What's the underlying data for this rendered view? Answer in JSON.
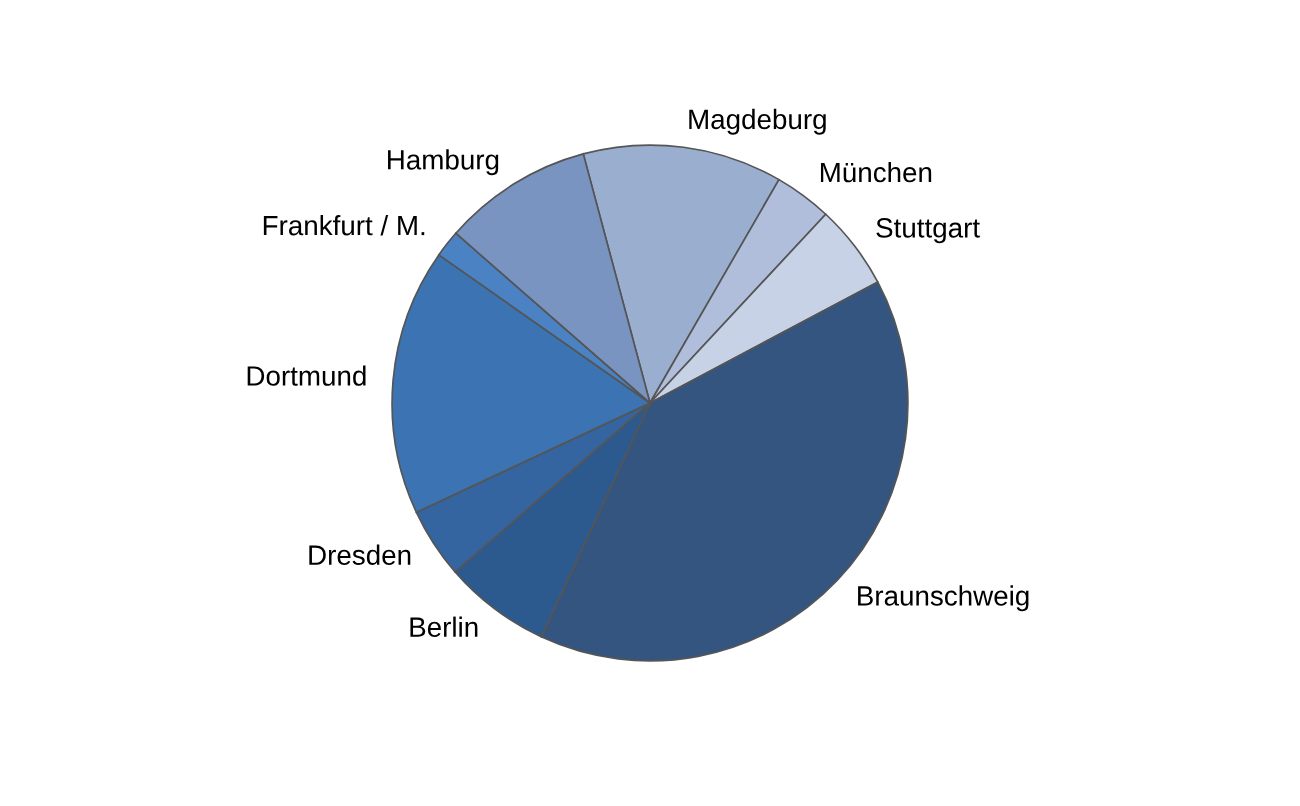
{
  "chart_data": {
    "type": "pie",
    "categories": [
      "Magdeburg",
      "München",
      "Stuttgart",
      "Braunschweig",
      "Berlin",
      "Dresden",
      "Dortmund",
      "Frankfurt / M.",
      "Hamburg"
    ],
    "values": [
      12.5,
      3.6,
      5.3,
      39.7,
      6.7,
      4.4,
      16.7,
      1.7,
      9.4
    ],
    "colors": [
      "#9aaed0",
      "#b0bedb",
      "#c8d2e6",
      "#34557f",
      "#2d5a8e",
      "#3465a0",
      "#3b73b3",
      "#4a82c4",
      "#7a94c2"
    ]
  }
}
